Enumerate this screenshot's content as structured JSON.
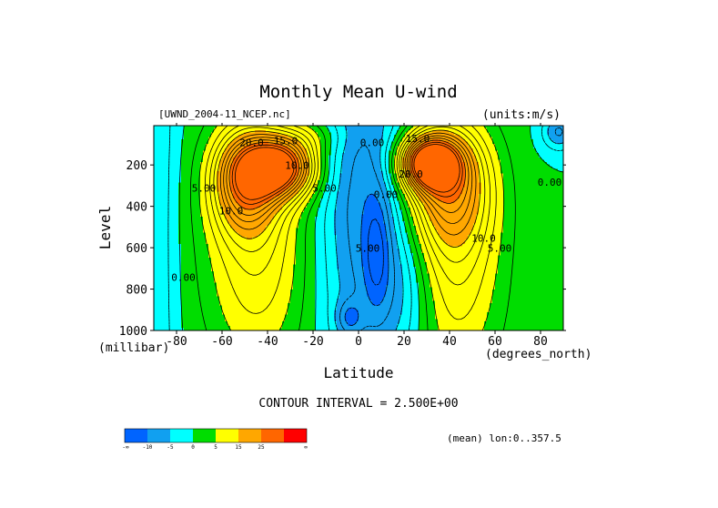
{
  "chart_data": {
    "type": "heatmap",
    "title": "Monthly Mean U-wind",
    "dataset": "[UWND_2004-11_NCEP.nc]",
    "units": "(units:m/s)",
    "xlabel": "Latitude",
    "x_units": "(degrees_north)",
    "ylabel": "Level",
    "y_units": "(millibar)",
    "xlim": [
      -90,
      90
    ],
    "ylim": [
      1000,
      10
    ],
    "x_ticks": [
      "-80",
      "-60",
      "-40",
      "-20",
      "0",
      "20",
      "40",
      "60",
      "80"
    ],
    "x_tick_values": [
      -80,
      -60,
      -40,
      -20,
      0,
      20,
      40,
      60,
      80
    ],
    "y_ticks": [
      "200",
      "400",
      "600",
      "800",
      "1000"
    ],
    "y_tick_values": [
      200,
      400,
      600,
      800,
      1000
    ],
    "contour_interval_text": "CONTOUR INTERVAL = 2.500E+00",
    "footer_text": "(mean) lon:0..357.5",
    "contour_labels": [
      {
        "text": "20.0",
        "lat": -47,
        "lev": 110
      },
      {
        "text": "15.0",
        "lat": -32,
        "lev": 100
      },
      {
        "text": "10.0",
        "lat": -27,
        "lev": 220
      },
      {
        "text": "5.00",
        "lat": -68,
        "lev": 330
      },
      {
        "text": "10.0",
        "lat": -56,
        "lev": 440
      },
      {
        "text": "5.00",
        "lat": -15,
        "lev": 330
      },
      {
        "text": "0.00",
        "lat": -77,
        "lev": 760
      },
      {
        "text": "0.00",
        "lat": 6,
        "lev": 110
      },
      {
        "text": "15.0",
        "lat": 26,
        "lev": 90
      },
      {
        "text": "20.0",
        "lat": 23,
        "lev": 260
      },
      {
        "text": "0.00",
        "lat": 12,
        "lev": 360
      },
      {
        "text": "5.00",
        "lat": 4,
        "lev": 620
      },
      {
        "text": "10.0",
        "lat": 55,
        "lev": 570
      },
      {
        "text": "5.00",
        "lat": 62,
        "lev": 620
      },
      {
        "text": "0.00",
        "lat": 84,
        "lev": 300
      }
    ],
    "colorbar": {
      "colors": [
        "#0064ff",
        "#11a0f0",
        "#00ffff",
        "#00dd00",
        "#ffff00",
        "#ffa700",
        "#ff6600",
        "#ff0000"
      ],
      "tick_labels": [
        "-∞",
        "-10",
        "-5",
        "0",
        "5",
        "15",
        "25",
        "∞"
      ]
    }
  }
}
